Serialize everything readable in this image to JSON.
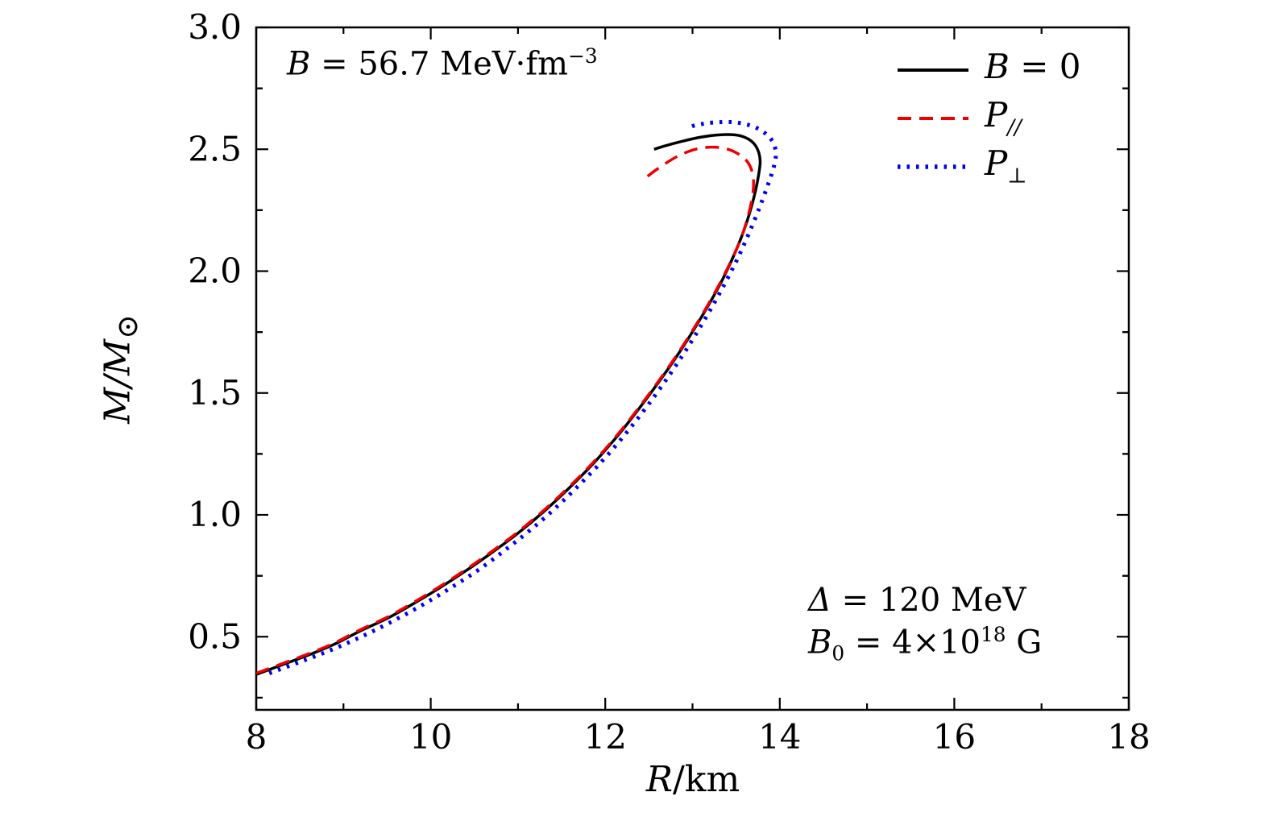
{
  "figure": {
    "background": "#ffffff"
  },
  "chart_data": {
    "type": "line",
    "title": "",
    "xlabel": {
      "var": "R",
      "rest": "/km"
    },
    "ylabel": {
      "main": "M/M",
      "sub": "⊙"
    },
    "xlim": [
      8,
      18
    ],
    "ylim": [
      0.2,
      3.0
    ],
    "xticks": [
      8,
      10,
      12,
      14,
      16,
      18
    ],
    "xtick_labels": [
      "8",
      "10",
      "12",
      "14",
      "16",
      "18"
    ],
    "yticks": [
      0.5,
      1.0,
      1.5,
      2.0,
      2.5,
      3.0
    ],
    "ytick_labels": [
      "0.5",
      "1.0",
      "1.5",
      "2.0",
      "2.5",
      "3.0"
    ],
    "grid": false,
    "legend_position": "top-right",
    "annotations": {
      "bag_constant": {
        "var": "B",
        "mid": " = 56.7 MeV·fm",
        "sup": "−3"
      },
      "gap": {
        "var": "Δ",
        "rest": " = 120 MeV"
      },
      "field": {
        "var": "B",
        "sub": "0",
        "mid": " = 4×10",
        "sup": "18",
        "rest": " G"
      }
    },
    "series": [
      {
        "name": "B = 0",
        "legend": {
          "var": "B",
          "rest": " = 0",
          "sub": ""
        },
        "color": "#000000",
        "style": "solid",
        "width": 3.5,
        "points": [
          [
            8.0,
            0.345
          ],
          [
            8.3,
            0.385
          ],
          [
            8.6,
            0.425
          ],
          [
            8.9,
            0.47
          ],
          [
            9.2,
            0.525
          ],
          [
            9.5,
            0.575
          ],
          [
            9.8,
            0.635
          ],
          [
            10.1,
            0.7
          ],
          [
            10.4,
            0.77
          ],
          [
            10.7,
            0.845
          ],
          [
            11.0,
            0.925
          ],
          [
            11.3,
            1.015
          ],
          [
            11.6,
            1.115
          ],
          [
            11.9,
            1.225
          ],
          [
            12.2,
            1.35
          ],
          [
            12.5,
            1.49
          ],
          [
            12.8,
            1.64
          ],
          [
            13.1,
            1.81
          ],
          [
            13.35,
            1.97
          ],
          [
            13.55,
            2.13
          ],
          [
            13.68,
            2.27
          ],
          [
            13.76,
            2.4
          ],
          [
            13.77,
            2.47
          ],
          [
            13.7,
            2.525
          ],
          [
            13.55,
            2.555
          ],
          [
            13.35,
            2.56
          ],
          [
            13.1,
            2.55
          ],
          [
            12.85,
            2.53
          ],
          [
            12.65,
            2.51
          ],
          [
            12.56,
            2.5
          ]
        ]
      },
      {
        "name": "P//",
        "legend": {
          "var": "P",
          "rest": "",
          "sub": "//"
        },
        "color": "#ee0000",
        "style": "dashed",
        "width": 3.5,
        "points": [
          [
            8.0,
            0.35
          ],
          [
            8.3,
            0.39
          ],
          [
            8.6,
            0.43
          ],
          [
            8.9,
            0.475
          ],
          [
            9.2,
            0.53
          ],
          [
            9.5,
            0.58
          ],
          [
            9.8,
            0.64
          ],
          [
            10.1,
            0.705
          ],
          [
            10.4,
            0.775
          ],
          [
            10.7,
            0.85
          ],
          [
            11.0,
            0.93
          ],
          [
            11.3,
            1.02
          ],
          [
            11.6,
            1.12
          ],
          [
            11.9,
            1.23
          ],
          [
            12.2,
            1.355
          ],
          [
            12.5,
            1.495
          ],
          [
            12.8,
            1.645
          ],
          [
            13.1,
            1.815
          ],
          [
            13.35,
            1.975
          ],
          [
            13.55,
            2.13
          ],
          [
            13.66,
            2.26
          ],
          [
            13.7,
            2.36
          ],
          [
            13.66,
            2.43
          ],
          [
            13.55,
            2.475
          ],
          [
            13.35,
            2.505
          ],
          [
            13.1,
            2.505
          ],
          [
            12.85,
            2.475
          ],
          [
            12.6,
            2.42
          ],
          [
            12.42,
            2.37
          ]
        ]
      },
      {
        "name": "P⊥",
        "legend": {
          "var": "P",
          "rest": "",
          "sub": "⊥"
        },
        "color": "#0000ee",
        "style": "dotted",
        "width": 5,
        "points": [
          [
            8.15,
            0.35
          ],
          [
            8.45,
            0.39
          ],
          [
            8.75,
            0.43
          ],
          [
            9.05,
            0.475
          ],
          [
            9.35,
            0.525
          ],
          [
            9.65,
            0.58
          ],
          [
            9.95,
            0.64
          ],
          [
            10.25,
            0.705
          ],
          [
            10.55,
            0.775
          ],
          [
            10.85,
            0.855
          ],
          [
            11.15,
            0.94
          ],
          [
            11.45,
            1.035
          ],
          [
            11.75,
            1.14
          ],
          [
            12.05,
            1.255
          ],
          [
            12.35,
            1.385
          ],
          [
            12.65,
            1.53
          ],
          [
            12.95,
            1.69
          ],
          [
            13.25,
            1.87
          ],
          [
            13.5,
            2.04
          ],
          [
            13.7,
            2.2
          ],
          [
            13.85,
            2.34
          ],
          [
            13.94,
            2.44
          ],
          [
            13.95,
            2.5
          ],
          [
            13.88,
            2.55
          ],
          [
            13.72,
            2.59
          ],
          [
            13.5,
            2.61
          ],
          [
            13.25,
            2.61
          ],
          [
            13.05,
            2.6
          ],
          [
            12.97,
            2.59
          ]
        ]
      }
    ]
  }
}
